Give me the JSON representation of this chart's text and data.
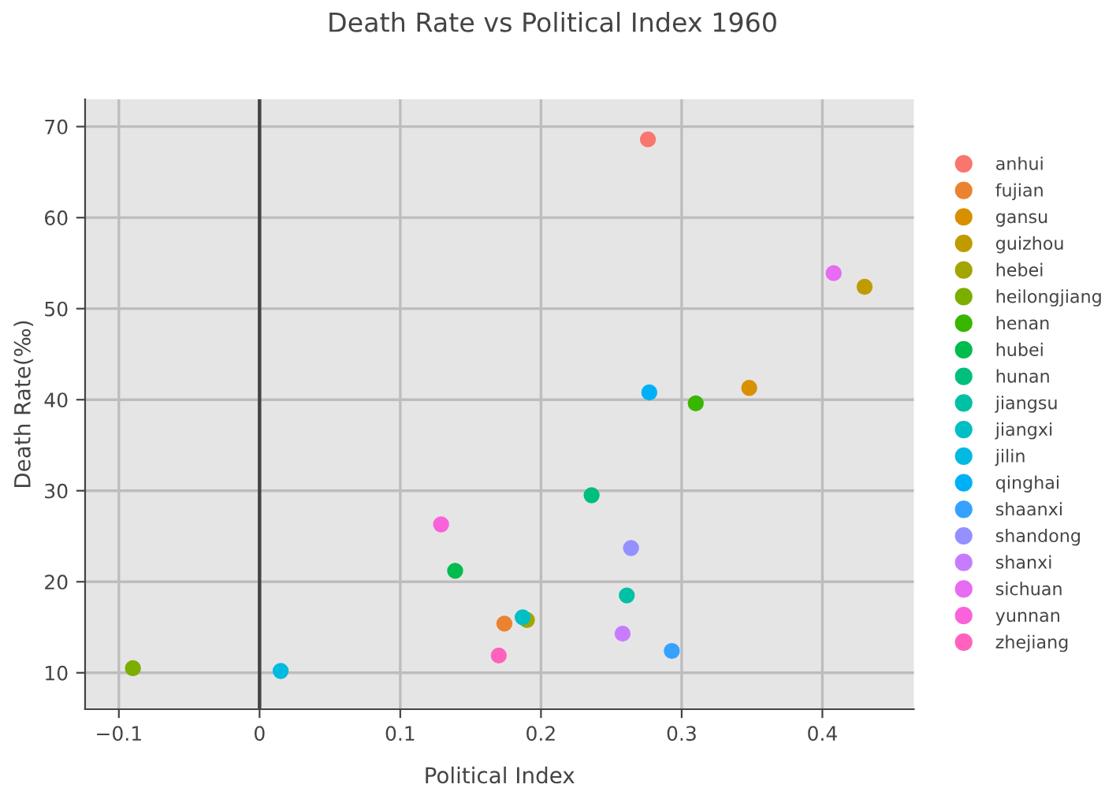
{
  "chart_data": {
    "type": "scatter",
    "title": "Death Rate vs Political Index 1960",
    "xlabel": "Political Index",
    "ylabel": "Death Rate(‰)",
    "xlim": [
      -0.124,
      0.465
    ],
    "ylim": [
      6.0,
      73.0
    ],
    "xticks": [
      {
        "value": -0.1,
        "label": "−0.1"
      },
      0,
      0.1,
      0.2,
      0.3,
      0.4
    ],
    "yticks": [
      10,
      20,
      30,
      40,
      50,
      60,
      70
    ],
    "grid": true,
    "legend": "right",
    "marker": "circle",
    "ref_lines": [
      {
        "axis": "x",
        "value": 0,
        "color": "#444444"
      }
    ],
    "series": [
      {
        "name": "anhui",
        "color": "#f8766d",
        "x": [
          0.276
        ],
        "values": [
          68.6
        ]
      },
      {
        "name": "fujian",
        "color": "#ea8331",
        "x": [
          0.174
        ],
        "values": [
          15.4
        ]
      },
      {
        "name": "gansu",
        "color": "#d89000",
        "x": [
          0.348
        ],
        "values": [
          41.3
        ]
      },
      {
        "name": "guizhou",
        "color": "#c09b00",
        "x": [
          0.43
        ],
        "values": [
          52.4
        ]
      },
      {
        "name": "hebei",
        "color": "#a3a500",
        "x": [
          0.19
        ],
        "values": [
          15.8
        ]
      },
      {
        "name": "heilongjiang",
        "color": "#7cae00",
        "x": [
          -0.09
        ],
        "values": [
          10.5
        ]
      },
      {
        "name": "henan",
        "color": "#39b600",
        "x": [
          0.31
        ],
        "values": [
          39.6
        ]
      },
      {
        "name": "hubei",
        "color": "#00bb4e",
        "x": [
          0.139
        ],
        "values": [
          21.2
        ]
      },
      {
        "name": "hunan",
        "color": "#00bf7d",
        "x": [
          0.236
        ],
        "values": [
          29.5
        ]
      },
      {
        "name": "jiangsu",
        "color": "#00c1a3",
        "x": [
          0.261
        ],
        "values": [
          18.5
        ]
      },
      {
        "name": "jiangxi",
        "color": "#00bfc4",
        "x": [
          0.187
        ],
        "values": [
          16.1
        ]
      },
      {
        "name": "jilin",
        "color": "#00bae0",
        "x": [
          0.015
        ],
        "values": [
          10.2
        ]
      },
      {
        "name": "qinghai",
        "color": "#00b0f6",
        "x": [
          0.277
        ],
        "values": [
          40.8
        ]
      },
      {
        "name": "shaanxi",
        "color": "#35a2ff",
        "x": [
          0.293
        ],
        "values": [
          12.4
        ]
      },
      {
        "name": "shandong",
        "color": "#9590ff",
        "x": [
          0.264
        ],
        "values": [
          23.7
        ]
      },
      {
        "name": "shanxi",
        "color": "#c77cff",
        "x": [
          0.258
        ],
        "values": [
          14.3
        ]
      },
      {
        "name": "sichuan",
        "color": "#e76bf3",
        "x": [
          0.408
        ],
        "values": [
          53.9
        ]
      },
      {
        "name": "yunnan",
        "color": "#fa62db",
        "x": [
          0.129
        ],
        "values": [
          26.3
        ]
      },
      {
        "name": "zhejiang",
        "color": "#ff62bc",
        "x": [
          0.17
        ],
        "values": [
          11.9
        ]
      }
    ]
  }
}
